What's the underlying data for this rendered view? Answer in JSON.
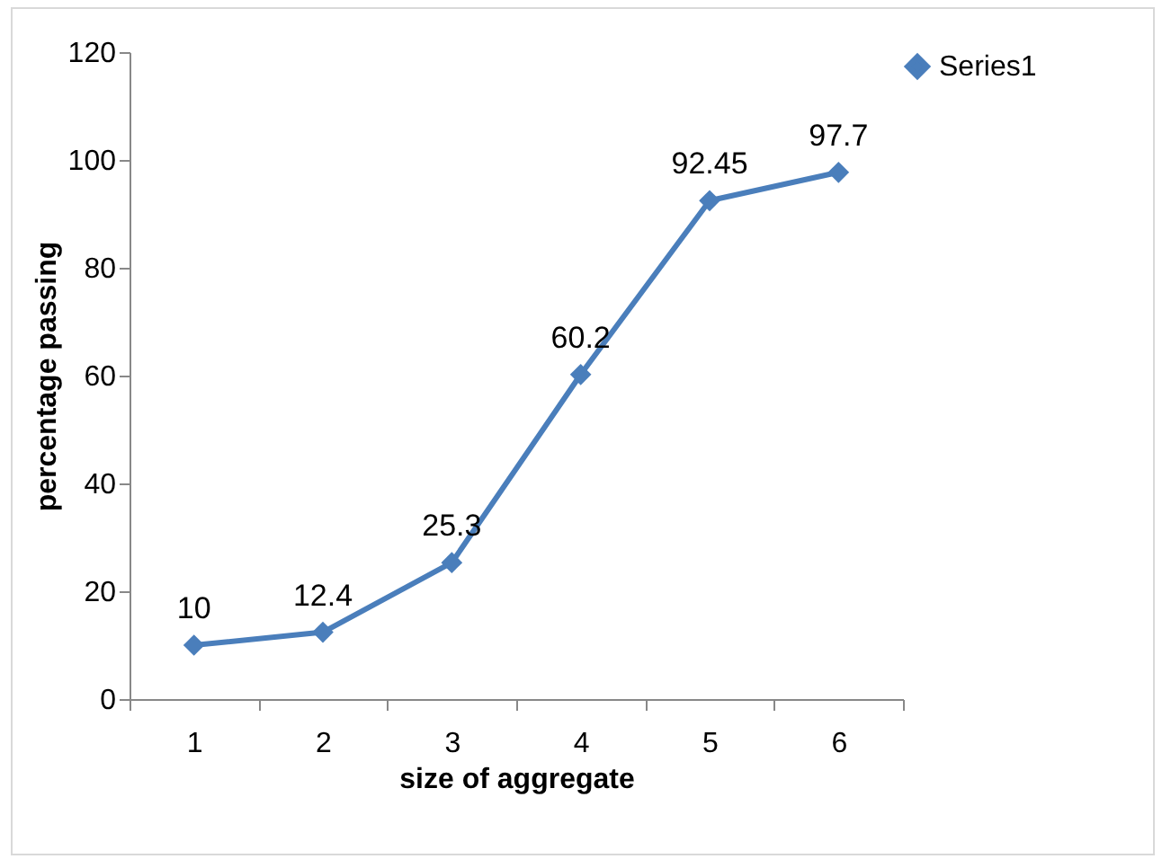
{
  "chart_data": {
    "type": "line",
    "xlabel": "size of aggregate",
    "ylabel": "percentage passing",
    "categories": [
      "1",
      "2",
      "3",
      "4",
      "5",
      "6"
    ],
    "series": [
      {
        "name": "Series1",
        "color": "#4a7ebb",
        "values": [
          10,
          12.4,
          25.3,
          60.2,
          92.45,
          97.7
        ]
      }
    ],
    "ylim": [
      0,
      120
    ],
    "yticks": [
      0,
      20,
      40,
      60,
      80,
      100,
      120
    ],
    "data_labels": true,
    "marker": "diamond",
    "line_style": "solid",
    "grid": false,
    "legend": "right"
  }
}
